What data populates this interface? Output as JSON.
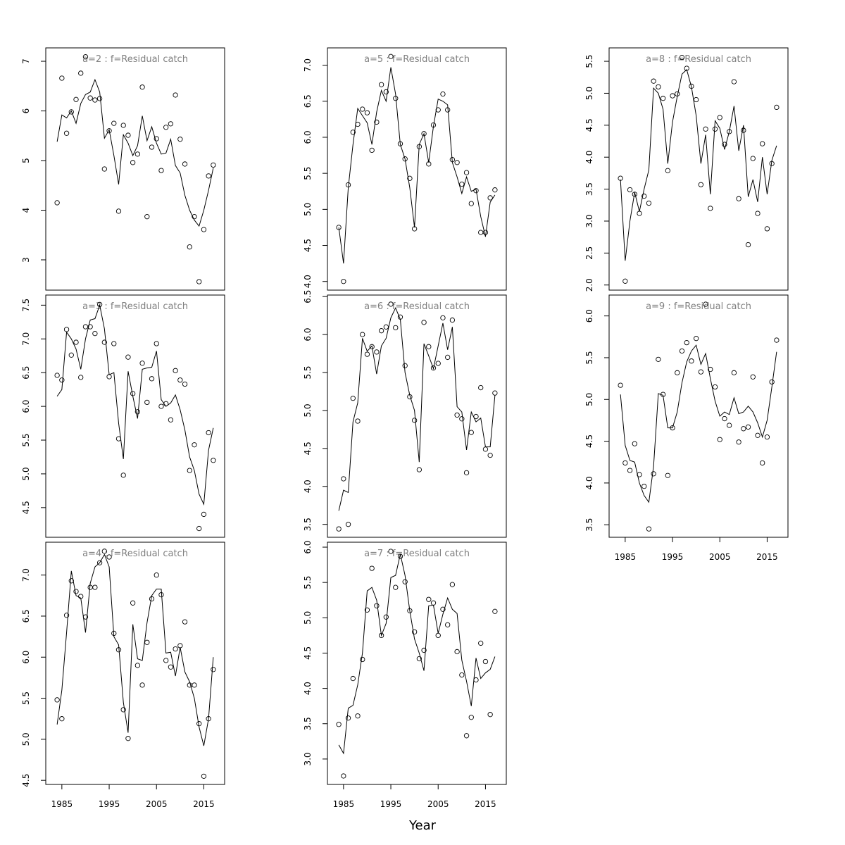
{
  "figure": {
    "xlabel": "Year"
  },
  "chart_data": [
    {
      "type": "line",
      "title": "a=2  :  f=Residual catch",
      "x": [
        1984,
        1985,
        1986,
        1987,
        1988,
        1989,
        1990,
        1991,
        1992,
        1993,
        1994,
        1995,
        1996,
        1997,
        1998,
        1999,
        2000,
        2001,
        2002,
        2003,
        2004,
        2005,
        2006,
        2007,
        2008,
        2009,
        2010,
        2011,
        2012,
        2013,
        2014,
        2015,
        2016,
        2017
      ],
      "xlim": [
        1981.6,
        2019.4
      ],
      "ylim": [
        2.39,
        7.27
      ],
      "yticks": [
        3,
        4,
        5,
        6,
        7
      ],
      "series": [
        {
          "marker": "circle",
          "color": "#000000",
          "values": [
            4.15,
            6.66,
            5.55,
            5.98,
            6.23,
            6.76,
            7.09,
            6.26,
            6.22,
            6.25,
            4.83,
            5.6,
            5.75,
            3.98,
            5.71,
            5.51,
            4.96,
            5.13,
            6.48,
            3.87,
            5.27,
            5.44,
            4.8,
            5.67,
            5.74,
            6.32,
            5.43,
            4.93,
            3.26,
            3.87,
            2.56,
            3.61,
            4.69,
            4.91
          ]
        },
        {
          "marker": "line",
          "color": "#000000",
          "values": [
            5.38,
            5.92,
            5.86,
            6.0,
            5.75,
            6.15,
            6.33,
            6.38,
            6.63,
            6.38,
            5.45,
            5.62,
            5.1,
            4.52,
            5.52,
            5.35,
            5.1,
            5.3,
            5.9,
            5.4,
            5.68,
            5.35,
            5.13,
            5.15,
            5.43,
            4.9,
            4.75,
            4.3,
            4.0,
            3.8,
            3.68,
            4.0,
            4.4,
            4.85
          ]
        }
      ]
    },
    {
      "type": "line",
      "title": "a=3  :  f=Residual catch",
      "x": [
        1984,
        1985,
        1986,
        1987,
        1988,
        1989,
        1990,
        1991,
        1992,
        1993,
        1994,
        1995,
        1996,
        1997,
        1998,
        1999,
        2000,
        2001,
        2002,
        2003,
        2004,
        2005,
        2006,
        2007,
        2008,
        2009,
        2010,
        2011,
        2012,
        2013,
        2014,
        2015,
        2016,
        2017
      ],
      "xlim": [
        1981.6,
        2019.4
      ],
      "ylim": [
        4.06,
        7.65
      ],
      "yticks": [
        4.5,
        {
          "value": 5,
          "label": "5.0"
        },
        5.5,
        {
          "value": 6,
          "label": "6.0"
        },
        6.5,
        {
          "value": 7,
          "label": "7.0"
        },
        7.5
      ],
      "series": [
        {
          "marker": "circle",
          "color": "#000000",
          "values": [
            6.46,
            6.39,
            7.14,
            6.76,
            6.95,
            6.43,
            7.18,
            7.18,
            7.08,
            7.51,
            6.95,
            6.44,
            6.93,
            5.52,
            4.98,
            6.73,
            6.19,
            5.92,
            6.64,
            6.06,
            6.41,
            6.93,
            6.0,
            6.04,
            5.8,
            6.53,
            6.39,
            6.33,
            5.05,
            5.43,
            4.19,
            4.4,
            5.61,
            5.2
          ]
        },
        {
          "marker": "line",
          "color": "#000000",
          "values": [
            6.15,
            6.25,
            7.1,
            7.0,
            6.85,
            6.55,
            7.0,
            7.28,
            7.3,
            7.5,
            7.15,
            6.47,
            6.5,
            5.75,
            5.22,
            6.52,
            6.15,
            5.82,
            6.55,
            6.57,
            6.58,
            6.82,
            6.1,
            6.0,
            6.05,
            6.17,
            5.95,
            5.65,
            5.25,
            5.05,
            4.7,
            4.55,
            5.35,
            5.68
          ]
        }
      ]
    },
    {
      "type": "line",
      "title": "a=4  :  f=Residual catch",
      "x": [
        1984,
        1985,
        1986,
        1987,
        1988,
        1989,
        1990,
        1991,
        1992,
        1993,
        1994,
        1995,
        1996,
        1997,
        1998,
        1999,
        2000,
        2001,
        2002,
        2003,
        2004,
        2005,
        2006,
        2007,
        2008,
        2009,
        2010,
        2011,
        2012,
        2013,
        2014,
        2015,
        2016,
        2017
      ],
      "xlim": [
        1981.6,
        2019.4
      ],
      "xticks": [
        1985,
        1995,
        2005,
        2015
      ],
      "ylim": [
        4.45,
        7.4
      ],
      "yticks": [
        4.5,
        {
          "value": 5,
          "label": "5.0"
        },
        5.5,
        {
          "value": 6,
          "label": "6.0"
        },
        6.5,
        {
          "value": 7,
          "label": "7.0"
        }
      ],
      "series": [
        {
          "marker": "circle",
          "color": "#000000",
          "values": [
            5.48,
            5.25,
            6.51,
            6.93,
            6.8,
            6.74,
            6.49,
            6.85,
            6.85,
            7.15,
            7.29,
            7.22,
            6.29,
            6.09,
            5.36,
            5.01,
            6.66,
            5.9,
            5.66,
            6.18,
            6.71,
            7.0,
            6.76,
            5.96,
            5.88,
            6.1,
            6.14,
            6.43,
            5.66,
            5.66,
            5.19,
            4.55,
            5.25,
            5.85
          ]
        },
        {
          "marker": "line",
          "color": "#000000",
          "values": [
            5.18,
            5.6,
            6.3,
            7.05,
            6.75,
            6.72,
            6.3,
            6.9,
            7.1,
            7.15,
            7.25,
            7.1,
            6.25,
            6.15,
            5.45,
            5.08,
            6.4,
            5.98,
            5.96,
            6.42,
            6.75,
            6.83,
            6.83,
            6.05,
            6.06,
            5.77,
            6.12,
            5.82,
            5.7,
            5.5,
            5.15,
            4.92,
            5.25,
            6.0
          ]
        }
      ]
    },
    {
      "type": "line",
      "title": "a=5  :  f=Residual catch",
      "x": [
        1984,
        1985,
        1986,
        1987,
        1988,
        1989,
        1990,
        1991,
        1992,
        1993,
        1994,
        1995,
        1996,
        1997,
        1998,
        1999,
        2000,
        2001,
        2002,
        2003,
        2004,
        2005,
        2006,
        2007,
        2008,
        2009,
        2010,
        2011,
        2012,
        2013,
        2014,
        2015,
        2016,
        2017
      ],
      "xlim": [
        1981.6,
        2019.4
      ],
      "ylim": [
        3.88,
        7.24
      ],
      "yticks": [
        {
          "value": 4,
          "label": "4.0"
        },
        4.5,
        {
          "value": 5,
          "label": "5.0"
        },
        5.5,
        {
          "value": 6,
          "label": "6.0"
        },
        6.5,
        {
          "value": 7,
          "label": "7.0"
        }
      ],
      "series": [
        {
          "marker": "circle",
          "color": "#000000",
          "values": [
            4.75,
            4.0,
            5.34,
            6.07,
            6.18,
            6.39,
            6.34,
            5.82,
            6.21,
            6.73,
            6.63,
            7.12,
            6.54,
            5.91,
            5.7,
            5.43,
            4.73,
            5.87,
            6.05,
            5.63,
            6.17,
            6.38,
            6.6,
            6.38,
            5.69,
            5.65,
            5.35,
            5.51,
            5.08,
            5.26,
            4.68,
            4.68,
            5.16,
            5.27
          ]
        },
        {
          "marker": "line",
          "color": "#000000",
          "values": [
            4.75,
            4.25,
            5.3,
            5.9,
            6.4,
            6.3,
            6.2,
            5.9,
            6.35,
            6.65,
            6.5,
            6.97,
            6.6,
            5.9,
            5.7,
            5.3,
            4.75,
            5.9,
            6.05,
            5.65,
            6.15,
            6.53,
            6.5,
            6.45,
            5.65,
            5.45,
            5.22,
            5.45,
            5.25,
            5.28,
            4.9,
            4.62,
            5.1,
            5.2
          ]
        }
      ]
    },
    {
      "type": "line",
      "title": "a=6  :  f=Residual catch",
      "x": [
        1984,
        1985,
        1986,
        1987,
        1988,
        1989,
        1990,
        1991,
        1992,
        1993,
        1994,
        1995,
        1996,
        1997,
        1998,
        1999,
        2000,
        2001,
        2002,
        2003,
        2004,
        2005,
        2006,
        2007,
        2008,
        2009,
        2010,
        2011,
        2012,
        2013,
        2014,
        2015,
        2016,
        2017
      ],
      "xlim": [
        1981.6,
        2019.4
      ],
      "ylim": [
        3.33,
        6.52
      ],
      "yticks": [
        3.5,
        {
          "value": 4,
          "label": "4.0"
        },
        4.5,
        {
          "value": 5,
          "label": "5.0"
        },
        5.5,
        {
          "value": 6,
          "label": "6.0"
        },
        6.5
      ],
      "series": [
        {
          "marker": "circle",
          "color": "#000000",
          "values": [
            3.44,
            4.1,
            3.5,
            5.16,
            4.86,
            6.0,
            5.74,
            5.84,
            5.77,
            6.05,
            6.1,
            6.4,
            6.09,
            6.23,
            5.59,
            5.18,
            4.87,
            4.22,
            6.16,
            5.84,
            5.56,
            5.62,
            6.22,
            5.7,
            6.19,
            4.94,
            4.89,
            4.18,
            4.71,
            4.92,
            5.3,
            4.49,
            4.41,
            5.23
          ]
        },
        {
          "marker": "line",
          "color": "#000000",
          "values": [
            3.68,
            3.95,
            3.92,
            4.85,
            5.1,
            5.95,
            5.78,
            5.85,
            5.48,
            5.85,
            5.95,
            6.22,
            6.35,
            6.2,
            5.5,
            5.2,
            5.0,
            4.32,
            5.88,
            5.72,
            5.55,
            5.85,
            6.15,
            5.8,
            6.1,
            5.05,
            4.98,
            4.48,
            4.98,
            4.85,
            4.9,
            4.52,
            4.52,
            5.2
          ]
        }
      ]
    },
    {
      "type": "line",
      "title": "a=7  :  f=Residual catch",
      "x": [
        1984,
        1985,
        1986,
        1987,
        1988,
        1989,
        1990,
        1991,
        1992,
        1993,
        1994,
        1995,
        1996,
        1997,
        1998,
        1999,
        2000,
        2001,
        2002,
        2003,
        2004,
        2005,
        2006,
        2007,
        2008,
        2009,
        2010,
        2011,
        2012,
        2013,
        2014,
        2015,
        2016,
        2017
      ],
      "xlim": [
        1981.6,
        2019.4
      ],
      "xticks": [
        1985,
        1995,
        2005,
        2015
      ],
      "ylim": [
        2.64,
        6.07
      ],
      "yticks": [
        {
          "value": 3,
          "label": "3.0"
        },
        3.5,
        {
          "value": 4,
          "label": "4.0"
        },
        4.5,
        {
          "value": 5,
          "label": "5.0"
        },
        5.5,
        {
          "value": 6,
          "label": "6.0"
        }
      ],
      "series": [
        {
          "marker": "circle",
          "color": "#000000",
          "values": [
            3.49,
            2.76,
            3.58,
            4.14,
            3.61,
            4.41,
            5.11,
            5.7,
            5.17,
            4.75,
            5.01,
            5.94,
            5.43,
            5.87,
            5.51,
            5.1,
            4.8,
            4.42,
            4.54,
            5.26,
            5.21,
            4.75,
            5.12,
            4.9,
            5.47,
            4.52,
            4.19,
            3.33,
            3.59,
            4.12,
            4.64,
            4.38,
            3.63,
            5.09
          ]
        },
        {
          "marker": "line",
          "color": "#000000",
          "values": [
            3.2,
            3.08,
            3.72,
            3.76,
            4.05,
            4.5,
            5.38,
            5.43,
            5.25,
            4.75,
            4.92,
            5.57,
            5.6,
            5.9,
            5.6,
            5.1,
            4.7,
            4.5,
            4.25,
            5.17,
            5.18,
            4.78,
            5.05,
            5.28,
            5.12,
            5.06,
            4.4,
            4.1,
            3.75,
            4.43,
            4.14,
            4.22,
            4.27,
            4.45
          ]
        }
      ]
    },
    {
      "type": "line",
      "title": "a=8  :  f=Residual catch",
      "x": [
        1984,
        1985,
        1986,
        1987,
        1988,
        1989,
        1990,
        1991,
        1992,
        1993,
        1994,
        1995,
        1996,
        1997,
        1998,
        1999,
        2000,
        2001,
        2002,
        2003,
        2004,
        2005,
        2006,
        2007,
        2008,
        2009,
        2010,
        2011,
        2012,
        2013,
        2014,
        2015,
        2016,
        2017
      ],
      "xlim": [
        1981.6,
        2019.4
      ],
      "ylim": [
        1.92,
        5.71
      ],
      "yticks": [
        {
          "value": 2,
          "label": "2.0"
        },
        2.5,
        {
          "value": 3,
          "label": "3.0"
        },
        3.5,
        {
          "value": 4,
          "label": "4.0"
        },
        4.5,
        {
          "value": 5,
          "label": "5.0"
        },
        5.5
      ],
      "series": [
        {
          "marker": "circle",
          "color": "#000000",
          "values": [
            3.67,
            2.06,
            3.49,
            3.42,
            3.12,
            3.39,
            3.28,
            5.19,
            5.1,
            4.92,
            3.79,
            4.96,
            4.99,
            5.56,
            5.39,
            5.11,
            4.9,
            3.57,
            4.44,
            3.2,
            4.44,
            4.62,
            4.2,
            4.4,
            5.18,
            3.35,
            4.42,
            2.63,
            3.98,
            3.12,
            4.21,
            2.88,
            3.9,
            4.78
          ]
        },
        {
          "marker": "line",
          "color": "#000000",
          "values": [
            3.65,
            2.38,
            3.0,
            3.45,
            3.15,
            3.5,
            3.8,
            5.08,
            5.0,
            4.75,
            3.9,
            4.55,
            4.95,
            5.3,
            5.37,
            5.1,
            4.65,
            3.9,
            4.35,
            3.42,
            4.57,
            4.45,
            4.12,
            4.4,
            4.8,
            4.1,
            4.5,
            3.38,
            3.65,
            3.3,
            4.0,
            3.42,
            3.95,
            4.18
          ]
        }
      ]
    },
    {
      "type": "line",
      "title": "a=9  :  f=Residual catch",
      "x": [
        1984,
        1985,
        1986,
        1987,
        1988,
        1989,
        1990,
        1991,
        1992,
        1993,
        1994,
        1995,
        1996,
        1997,
        1998,
        1999,
        2000,
        2001,
        2002,
        2003,
        2004,
        2005,
        2006,
        2007,
        2008,
        2009,
        2010,
        2011,
        2012,
        2013,
        2014,
        2015,
        2016,
        2017
      ],
      "xlim": [
        1981.6,
        2019.4
      ],
      "xticks": [
        1985,
        1995,
        2005,
        2015
      ],
      "ylim": [
        3.35,
        6.25
      ],
      "yticks": [
        3.5,
        {
          "value": 4,
          "label": "4.0"
        },
        4.5,
        {
          "value": 5,
          "label": "5.0"
        },
        5.5,
        {
          "value": 6,
          "label": "6.0"
        }
      ],
      "series": [
        {
          "marker": "circle",
          "color": "#000000",
          "values": [
            5.17,
            4.24,
            4.15,
            4.47,
            4.1,
            3.96,
            3.45,
            4.11,
            5.48,
            5.06,
            4.09,
            4.66,
            5.32,
            5.58,
            5.68,
            5.46,
            5.73,
            5.33,
            6.14,
            5.36,
            5.15,
            4.52,
            4.77,
            4.69,
            5.32,
            4.49,
            4.65,
            4.67,
            5.27,
            4.57,
            4.24,
            4.55,
            5.21,
            5.71
          ]
        },
        {
          "marker": "line",
          "color": "#000000",
          "values": [
            5.06,
            4.45,
            4.27,
            4.25,
            4.0,
            3.85,
            3.77,
            4.2,
            5.07,
            5.05,
            4.66,
            4.66,
            4.85,
            5.2,
            5.45,
            5.58,
            5.65,
            5.42,
            5.55,
            5.25,
            4.98,
            4.8,
            4.85,
            4.82,
            5.02,
            4.83,
            4.85,
            4.92,
            4.85,
            4.72,
            4.55,
            4.75,
            5.15,
            5.57
          ]
        }
      ]
    }
  ]
}
